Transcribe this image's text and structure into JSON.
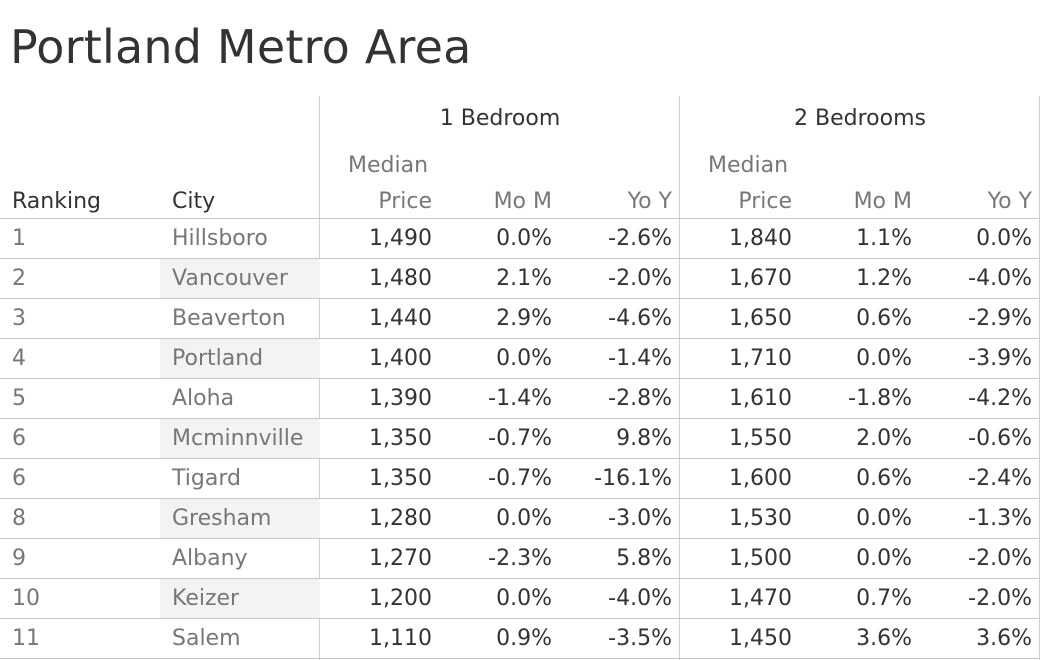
{
  "title": "Portland Metro Area",
  "groups": [
    "1 Bedroom",
    "2 Bedrooms"
  ],
  "headers": {
    "ranking": "Ranking",
    "city": "City",
    "median_top": "Median",
    "median_bottom": "Price",
    "mom": "Mo M",
    "yoy": "Yo Y"
  },
  "chart_data": {
    "type": "table",
    "title": "Portland Metro Area",
    "columns": [
      "Ranking",
      "City",
      "1 Bedroom Median Price",
      "1 Bedroom Mo M",
      "1 Bedroom Yo Y",
      "2 Bedrooms Median Price",
      "2 Bedrooms Mo M",
      "2 Bedrooms Yo Y"
    ],
    "rows": [
      {
        "rank": "1",
        "city": "Hillsboro",
        "b1_price": "1,490",
        "b1_mom": "0.0%",
        "b1_yoy": "-2.6%",
        "b2_price": "1,840",
        "b2_mom": "1.1%",
        "b2_yoy": "0.0%"
      },
      {
        "rank": "2",
        "city": "Vancouver",
        "b1_price": "1,480",
        "b1_mom": "2.1%",
        "b1_yoy": "-2.0%",
        "b2_price": "1,670",
        "b2_mom": "1.2%",
        "b2_yoy": "-4.0%"
      },
      {
        "rank": "3",
        "city": "Beaverton",
        "b1_price": "1,440",
        "b1_mom": "2.9%",
        "b1_yoy": "-4.6%",
        "b2_price": "1,650",
        "b2_mom": "0.6%",
        "b2_yoy": "-2.9%"
      },
      {
        "rank": "4",
        "city": "Portland",
        "b1_price": "1,400",
        "b1_mom": "0.0%",
        "b1_yoy": "-1.4%",
        "b2_price": "1,710",
        "b2_mom": "0.0%",
        "b2_yoy": "-3.9%"
      },
      {
        "rank": "5",
        "city": "Aloha",
        "b1_price": "1,390",
        "b1_mom": "-1.4%",
        "b1_yoy": "-2.8%",
        "b2_price": "1,610",
        "b2_mom": "-1.8%",
        "b2_yoy": "-4.2%"
      },
      {
        "rank": "6",
        "city": "Mcminnville",
        "b1_price": "1,350",
        "b1_mom": "-0.7%",
        "b1_yoy": "9.8%",
        "b2_price": "1,550",
        "b2_mom": "2.0%",
        "b2_yoy": "-0.6%"
      },
      {
        "rank": "6",
        "city": "Tigard",
        "b1_price": "1,350",
        "b1_mom": "-0.7%",
        "b1_yoy": "-16.1%",
        "b2_price": "1,600",
        "b2_mom": "0.6%",
        "b2_yoy": "-2.4%"
      },
      {
        "rank": "8",
        "city": "Gresham",
        "b1_price": "1,280",
        "b1_mom": "0.0%",
        "b1_yoy": "-3.0%",
        "b2_price": "1,530",
        "b2_mom": "0.0%",
        "b2_yoy": "-1.3%"
      },
      {
        "rank": "9",
        "city": "Albany",
        "b1_price": "1,270",
        "b1_mom": "-2.3%",
        "b1_yoy": "5.8%",
        "b2_price": "1,500",
        "b2_mom": "0.0%",
        "b2_yoy": "-2.0%"
      },
      {
        "rank": "10",
        "city": "Keizer",
        "b1_price": "1,200",
        "b1_mom": "0.0%",
        "b1_yoy": "-4.0%",
        "b2_price": "1,470",
        "b2_mom": "0.7%",
        "b2_yoy": "-2.0%"
      },
      {
        "rank": "11",
        "city": "Salem",
        "b1_price": "1,110",
        "b1_mom": "0.9%",
        "b1_yoy": "-3.5%",
        "b2_price": "1,450",
        "b2_mom": "3.6%",
        "b2_yoy": "3.6%"
      }
    ]
  }
}
